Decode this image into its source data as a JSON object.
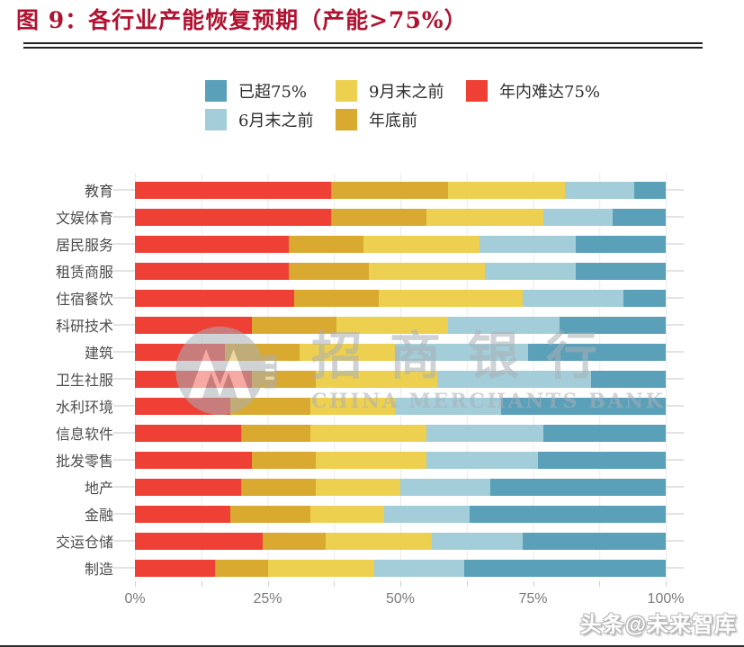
{
  "header": {
    "title": "图 9：各行业产能恢复预期（产能>75%）",
    "title_color": "#b01331"
  },
  "legend": {
    "items": [
      {
        "label": "已超75%",
        "color": "#5aa0b8"
      },
      {
        "label": "9月末之前",
        "color": "#edd04f"
      },
      {
        "label": "年内难达75%",
        "color": "#ee4035"
      },
      {
        "label": "6月末之前",
        "color": "#a3cdd8"
      },
      {
        "label": "年底前",
        "color": "#d9a930"
      }
    ]
  },
  "chart_data": {
    "type": "bar",
    "orientation": "horizontal",
    "stacked": true,
    "unit": "%",
    "title": "各行业产能恢复预期（产能>75%）",
    "categories": [
      "教育",
      "文娱体育",
      "居民服务",
      "租赁商服",
      "住宿餐饮",
      "科研技术",
      "建筑",
      "卫生社服",
      "水利环境",
      "信息软件",
      "批发零售",
      "地产",
      "金融",
      "交运仓储",
      "制造"
    ],
    "series": [
      {
        "name": "年内难达75%",
        "color": "#ee4035",
        "values": [
          37,
          37,
          29,
          29,
          30,
          22,
          17,
          22,
          18,
          20,
          22,
          20,
          18,
          24,
          15
        ]
      },
      {
        "name": "年底前",
        "color": "#d9a930",
        "values": [
          22,
          18,
          14,
          15,
          16,
          16,
          14,
          12,
          15,
          13,
          12,
          14,
          15,
          12,
          10
        ]
      },
      {
        "name": "9月末之前",
        "color": "#edd04f",
        "values": [
          22,
          22,
          22,
          22,
          27,
          21,
          18,
          23,
          16,
          22,
          21,
          16,
          14,
          20,
          20
        ]
      },
      {
        "name": "6月末之前",
        "color": "#a3cdd8",
        "values": [
          13,
          13,
          18,
          17,
          19,
          21,
          25,
          29,
          20,
          22,
          21,
          17,
          16,
          17,
          17
        ]
      },
      {
        "name": "已超75%",
        "color": "#5aa0b8",
        "values": [
          6,
          10,
          17,
          17,
          8,
          20,
          26,
          14,
          31,
          23,
          24,
          33,
          37,
          27,
          38
        ]
      }
    ],
    "x_ticks": [
      "0%",
      "25%",
      "50%",
      "75%",
      "100%"
    ],
    "xlim": [
      0,
      100
    ],
    "grid": true,
    "legend_position": "top"
  },
  "watermark": {
    "zh": "招商银行",
    "en": "CHINA MERCHANTS BANK"
  },
  "footer": {
    "text": "头条@未来智库"
  }
}
